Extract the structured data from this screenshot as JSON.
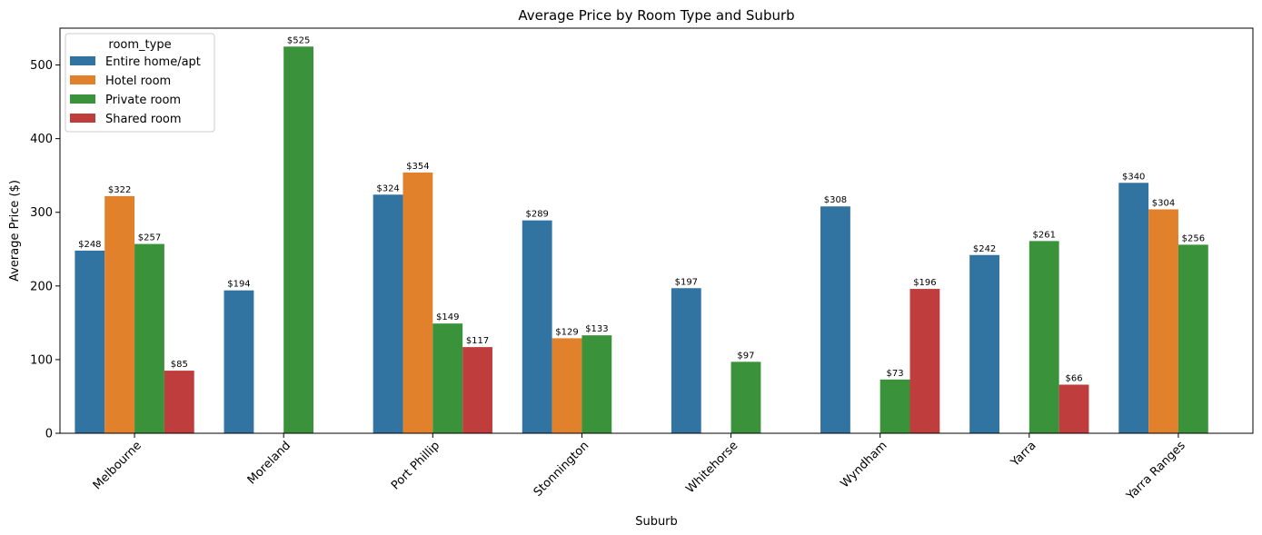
{
  "chart_data": {
    "type": "bar",
    "title": "Average Price by Room Type and Suburb",
    "xlabel": "Suburb",
    "ylabel": "Average Price ($)",
    "ylim": [
      0,
      550
    ],
    "yticks": [
      0,
      100,
      200,
      300,
      400,
      500
    ],
    "grid": false,
    "legend": {
      "title": "room_type",
      "placement": "top-left"
    },
    "categories": [
      "Melbourne",
      "Moreland",
      "Port Phillip",
      "Stonnington",
      "Whitehorse",
      "Wyndham",
      "Yarra",
      "Yarra Ranges"
    ],
    "series": [
      {
        "name": "Entire home/apt",
        "color": "#3274a1",
        "values": [
          248,
          194,
          324,
          289,
          197,
          308,
          242,
          340
        ]
      },
      {
        "name": "Hotel room",
        "color": "#e1812c",
        "values": [
          322,
          null,
          354,
          129,
          null,
          null,
          null,
          304
        ]
      },
      {
        "name": "Private room",
        "color": "#3a923a",
        "values": [
          257,
          525,
          149,
          133,
          97,
          73,
          261,
          256
        ]
      },
      {
        "name": "Shared room",
        "color": "#c03d3e",
        "values": [
          85,
          null,
          117,
          null,
          null,
          196,
          66,
          null
        ]
      }
    ],
    "data_labels": [
      [
        "$248",
        "$194",
        "$324",
        "$289",
        "$197",
        "$308",
        "$242",
        "$340"
      ],
      [
        "$322",
        null,
        "$354",
        "$129",
        null,
        null,
        null,
        "$304"
      ],
      [
        "$257",
        "$525",
        "$149",
        "$133",
        "$97",
        "$73",
        "$261",
        "$256"
      ],
      [
        "$85",
        null,
        "$117",
        null,
        null,
        "$196",
        "$66",
        null
      ]
    ]
  }
}
